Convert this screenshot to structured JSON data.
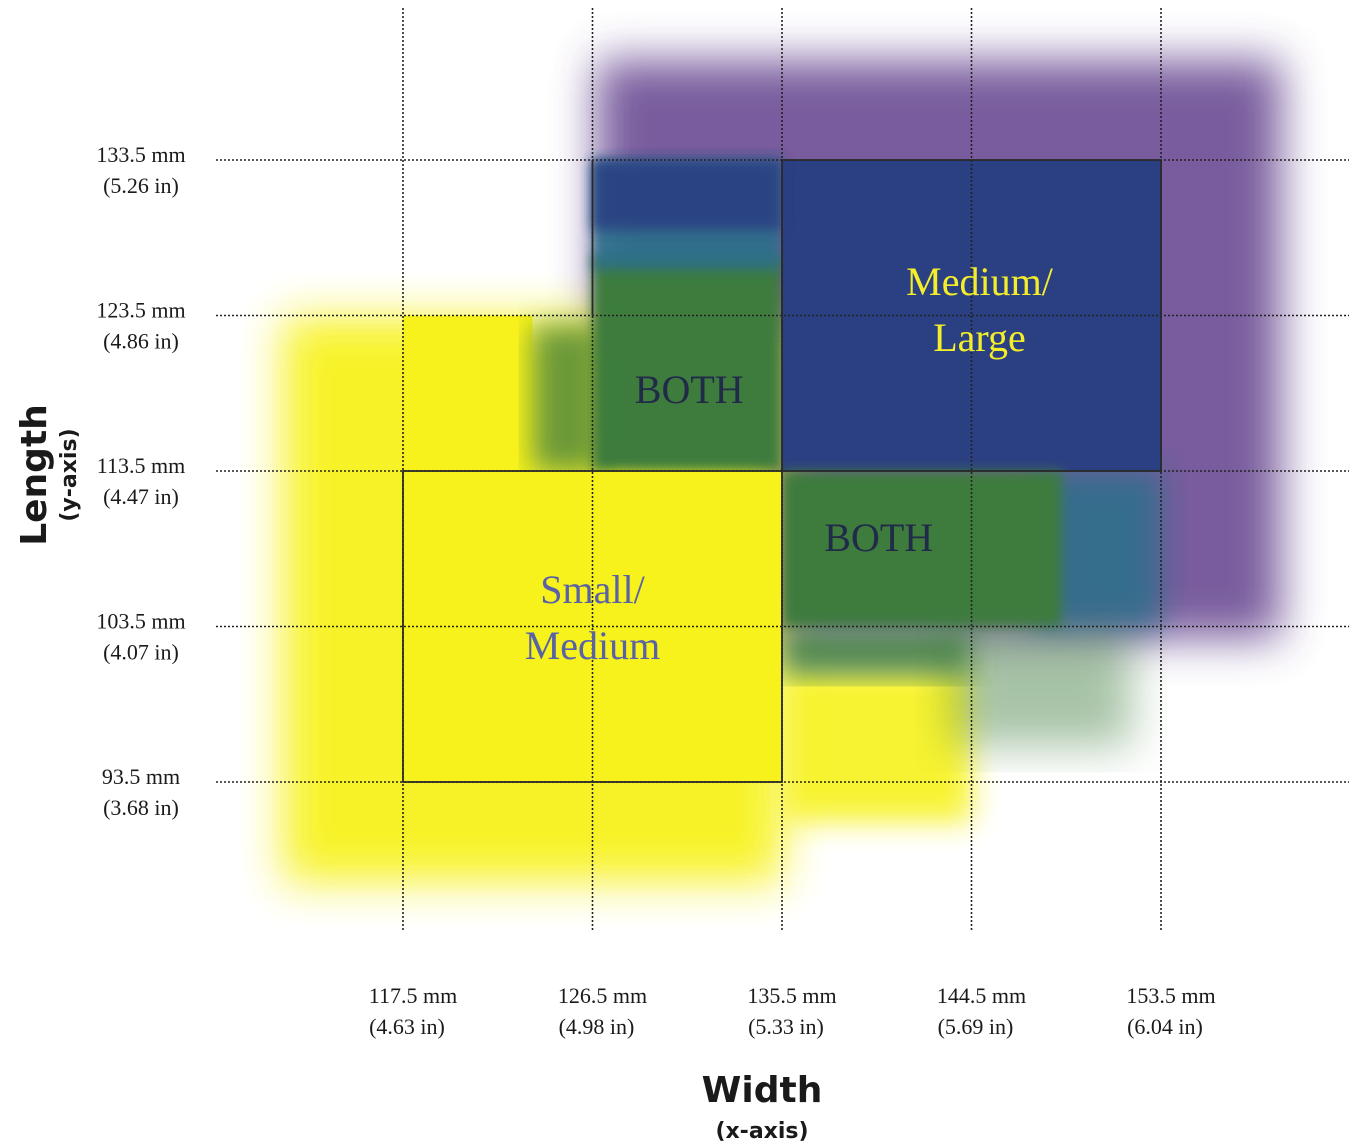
{
  "chart_data": {
    "type": "heatmap",
    "xlabel": "Width",
    "xlabel_sub": "(x-axis)",
    "ylabel": "Length",
    "ylabel_sub": "(y-axis)",
    "x_ticks": [
      {
        "value": 117.5,
        "mm": "117.5 mm",
        "inch": "(4.63 in)"
      },
      {
        "value": 126.5,
        "mm": "126.5 mm",
        "inch": "(4.98 in)"
      },
      {
        "value": 135.5,
        "mm": "135.5 mm",
        "inch": "(5.33 in)"
      },
      {
        "value": 144.5,
        "mm": "144.5 mm",
        "inch": "(5.69 in)"
      },
      {
        "value": 153.5,
        "mm": "153.5 mm",
        "inch": "(6.04 in)"
      }
    ],
    "y_ticks": [
      {
        "value": 133.5,
        "mm": "133.5 mm",
        "inch": "(5.26 in)"
      },
      {
        "value": 123.5,
        "mm": "123.5 mm",
        "inch": "(4.86 in)"
      },
      {
        "value": 113.5,
        "mm": "113.5 mm",
        "inch": "(4.47 in)"
      },
      {
        "value": 103.5,
        "mm": "103.5 mm",
        "inch": "(4.07 in)"
      },
      {
        "value": 93.5,
        "mm": "93.5 mm",
        "inch": "(3.68 in)"
      }
    ],
    "regions": [
      {
        "name": "Small/ Medium",
        "label_lines": [
          "Small/",
          "Medium"
        ],
        "color": "#f7f21c",
        "label_color": "#5a62a6",
        "x_range": [
          117.5,
          135.5
        ],
        "y_range": [
          93.5,
          113.5
        ]
      },
      {
        "name": "Medium/ Large",
        "label_lines": [
          "Medium/",
          "Large"
        ],
        "color": "#2b3f83",
        "label_color": "#f4ee2a",
        "x_range": [
          135.5,
          153.5
        ],
        "y_range": [
          113.5,
          133.5
        ]
      },
      {
        "name": "BOTH",
        "label_lines": [
          "BOTH"
        ],
        "color": "#3e7c3c",
        "label_color": "#222a4a",
        "x_range": [
          126.5,
          135.5
        ],
        "y_range": [
          113.5,
          123.5
        ]
      },
      {
        "name": "BOTH",
        "label_lines": [
          "BOTH"
        ],
        "color": "#3e7c3c",
        "label_color": "#222a4a",
        "x_range": [
          135.5,
          144.5
        ],
        "y_range": [
          103.5,
          113.5
        ]
      }
    ],
    "colors": {
      "small_medium": "#f7f21c",
      "medium_large": "#2b3f83",
      "both": "#3e7c3c",
      "purple_fade": "#6a4c93",
      "teal_transition": "#2a6f8a"
    }
  }
}
